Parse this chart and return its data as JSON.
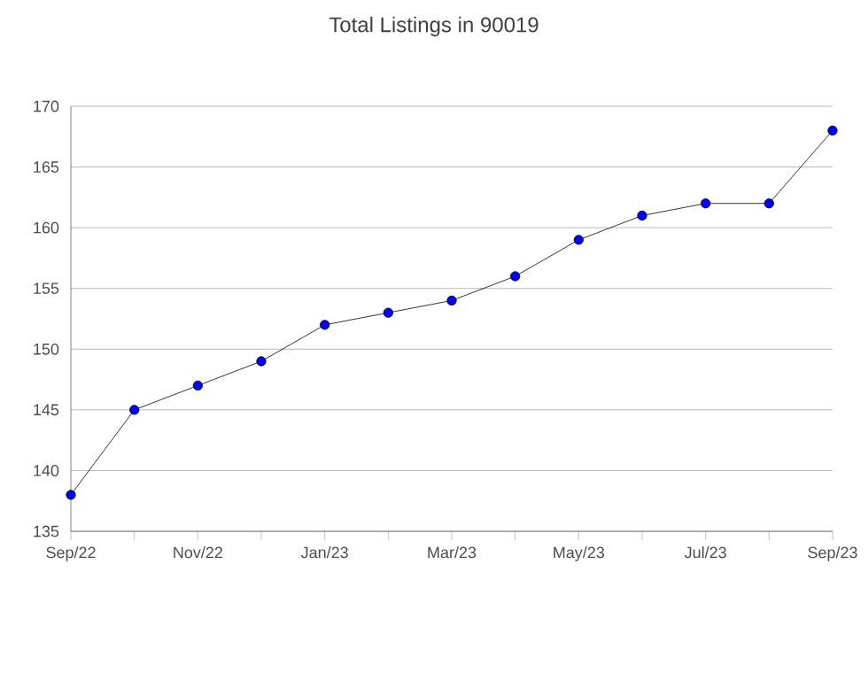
{
  "chart_data": {
    "type": "line",
    "title": "Total Listings in 90019",
    "categories": [
      "Sep/22",
      null,
      "Nov/22",
      null,
      "Jan/23",
      null,
      "Mar/23",
      null,
      "May/23",
      null,
      "Jul/23",
      null,
      "Sep/23"
    ],
    "series": [
      {
        "color": "#0000ff",
        "values": [
          138,
          145,
          147,
          149,
          152,
          153,
          154,
          156,
          159,
          161,
          162,
          162,
          168
        ]
      }
    ],
    "ylim": [
      135,
      170
    ],
    "yticks": [
      135,
      140,
      145,
      150,
      155,
      160,
      165,
      170
    ],
    "grid": "y",
    "marker": "circle",
    "line_style": "solid"
  }
}
